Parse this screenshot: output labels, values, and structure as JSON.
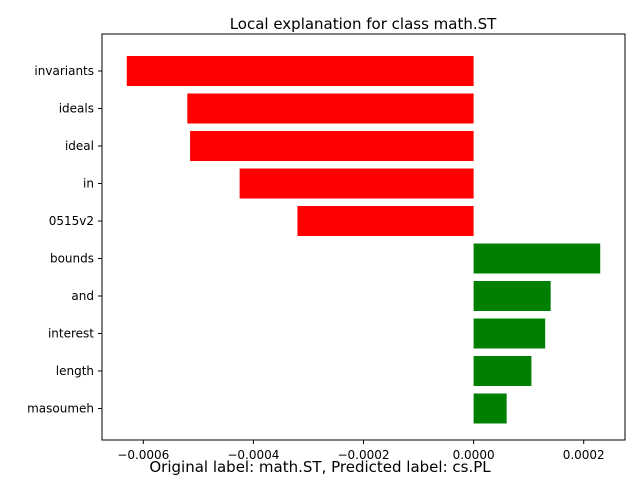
{
  "chart_data": {
    "type": "bar",
    "orientation": "horizontal",
    "title": "Local explanation for class math.ST",
    "xlabel": "",
    "ylabel": "",
    "categories": [
      "invariants",
      "ideals",
      "ideal",
      "in",
      "0515v2",
      "bounds",
      "and",
      "interest",
      "length",
      "masoumeh"
    ],
    "values": [
      -0.00063,
      -0.00052,
      -0.000515,
      -0.000425,
      -0.00032,
      0.00023,
      0.00014,
      0.00013,
      0.000105,
      6e-05
    ],
    "xlim": [
      -0.000675,
      0.000275
    ],
    "x_ticks": [
      -0.0006,
      -0.0004,
      -0.0002,
      0.0,
      0.0002
    ],
    "x_tick_labels": [
      "−0.0006",
      "−0.0004",
      "−0.0002",
      "0.0000",
      "0.0002"
    ],
    "grid": false,
    "colors": {
      "negative": "#ff0000",
      "positive": "#008000"
    }
  },
  "footer": {
    "caption": "Original label: math.ST, Predicted label: cs.PL"
  }
}
